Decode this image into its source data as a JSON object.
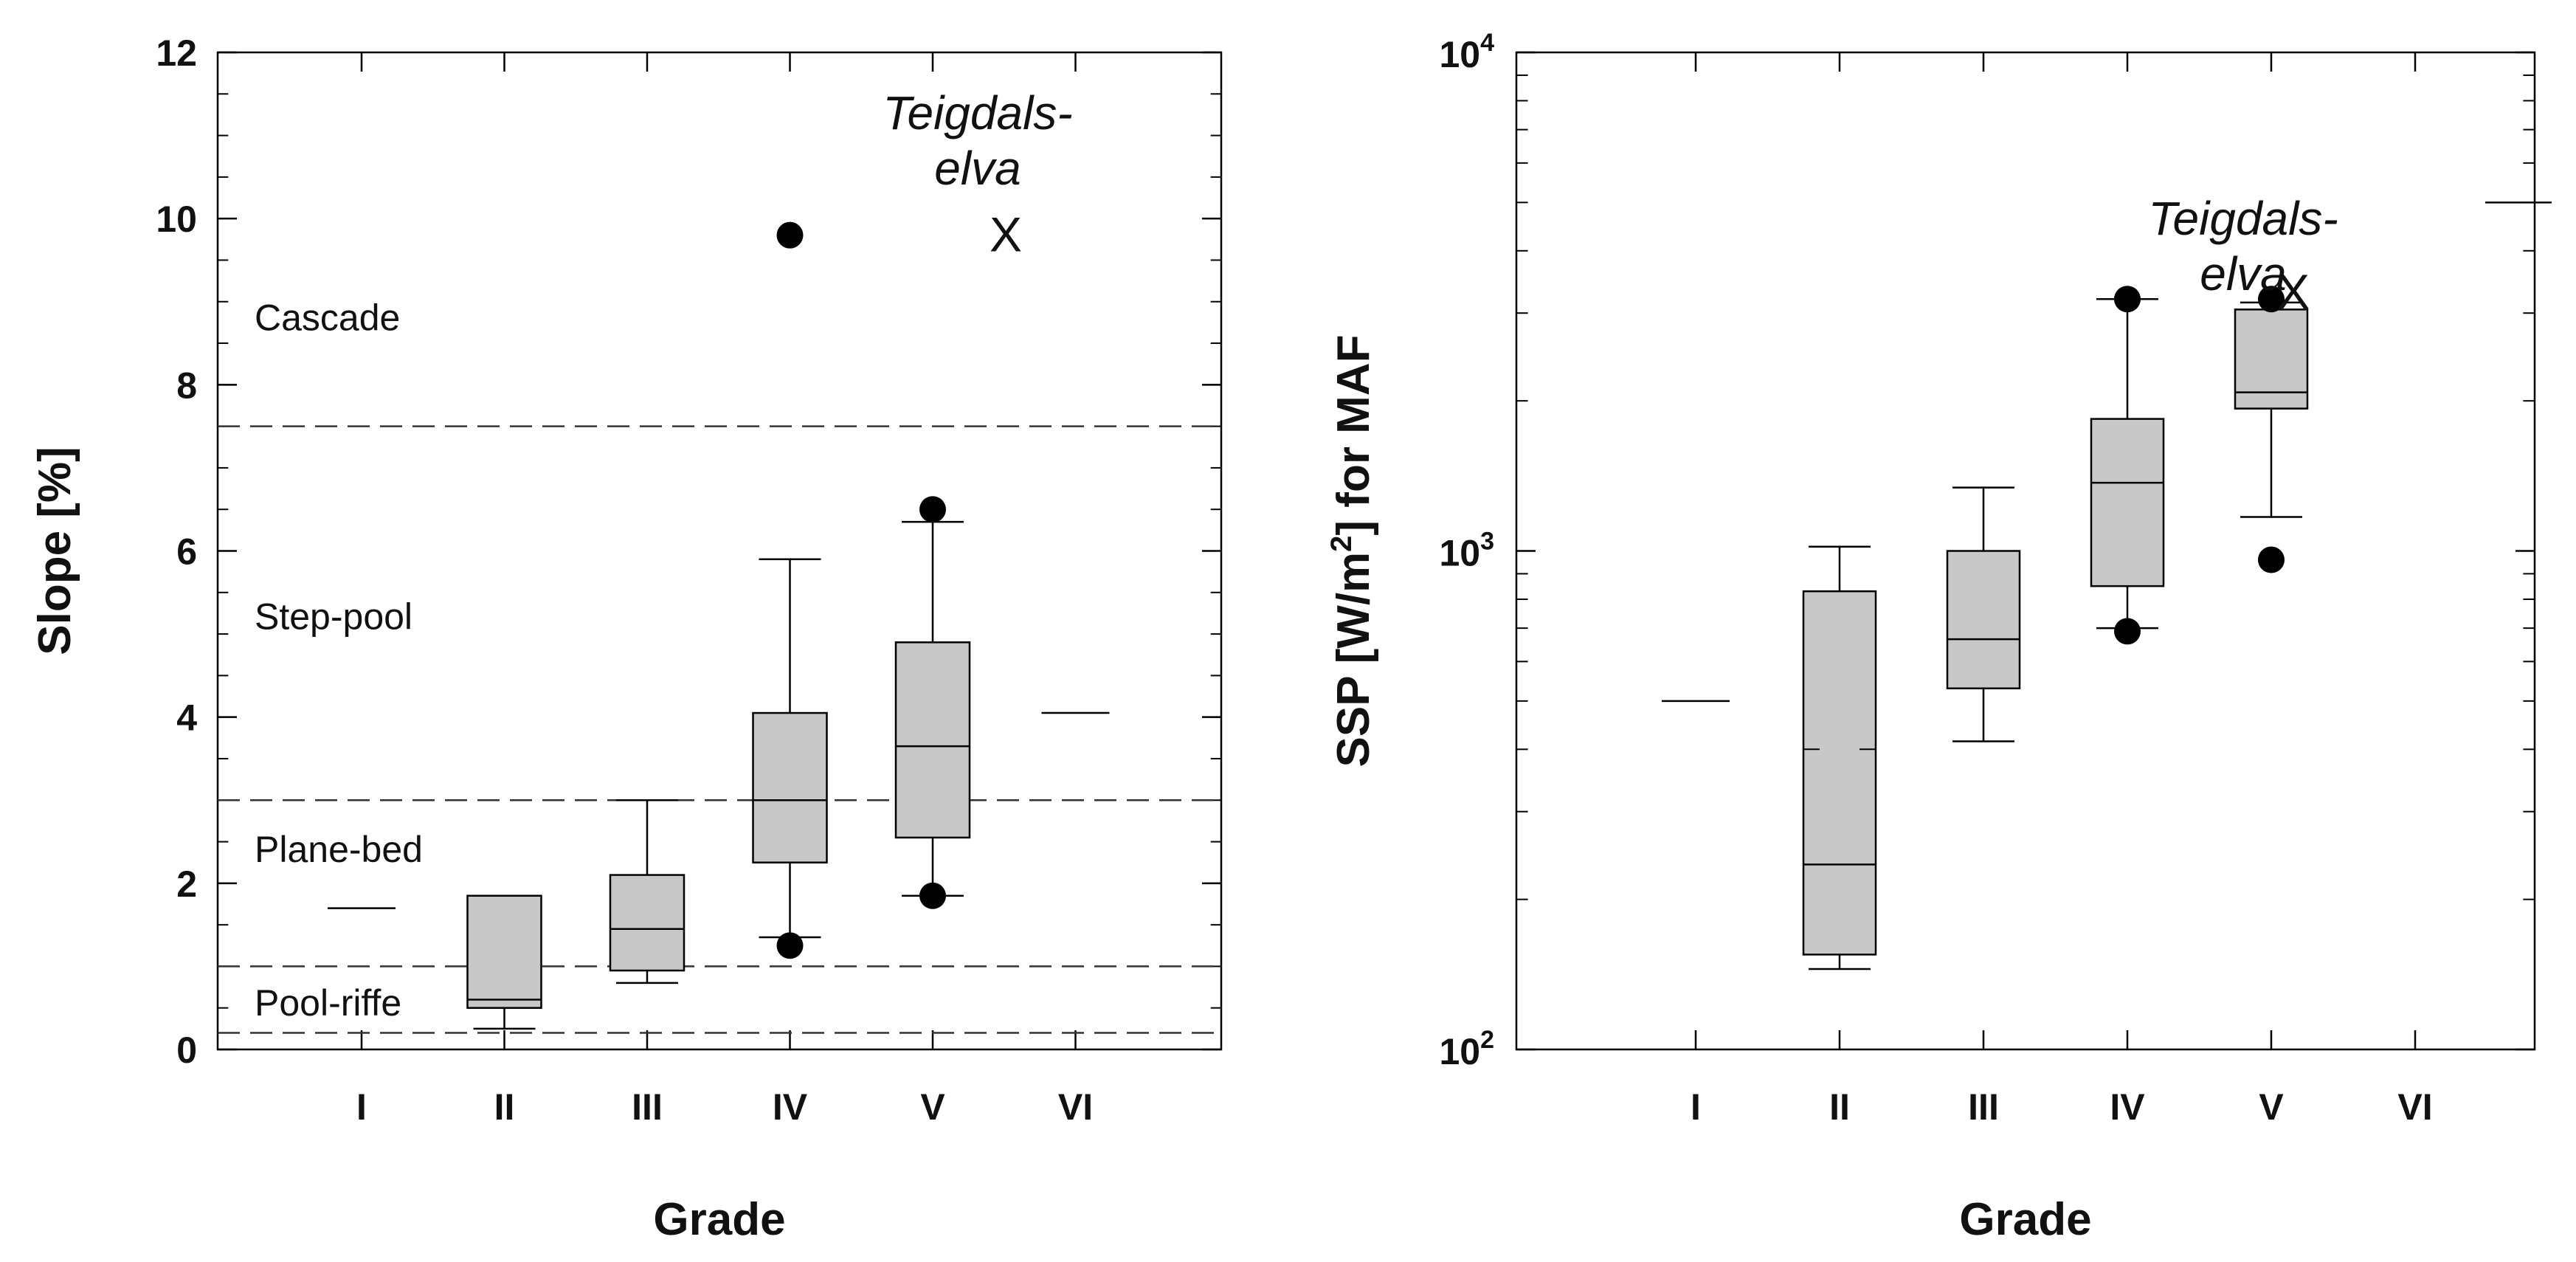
{
  "chart_data": [
    {
      "type": "box",
      "panel": "left",
      "xlabel": "Grade",
      "ylabel": "Slope [%]",
      "ylim": [
        0,
        12
      ],
      "yticks": [
        0,
        2,
        4,
        6,
        8,
        10,
        12
      ],
      "y_tick_labels": [
        "0",
        "2",
        "4",
        "6",
        "8",
        "10",
        "12"
      ],
      "categories": [
        "I",
        "II",
        "III",
        "IV",
        "V",
        "VI"
      ],
      "single_values": [
        {
          "category": "I",
          "value": 1.7
        },
        {
          "category": "VI",
          "value": 4.05
        }
      ],
      "boxes": [
        {
          "category": "II",
          "whisker_low": 0.25,
          "q1": 0.5,
          "median": 0.6,
          "q3": 1.85,
          "whisker_high": 1.85,
          "outliers": []
        },
        {
          "category": "III",
          "whisker_low": 0.8,
          "q1": 0.95,
          "median": 1.45,
          "q3": 2.1,
          "whisker_high": 3.0,
          "outliers": []
        },
        {
          "category": "IV",
          "whisker_low": 1.35,
          "q1": 2.25,
          "median": 3.0,
          "q3": 4.05,
          "whisker_high": 5.9,
          "outliers": [
            1.25,
            9.8
          ]
        },
        {
          "category": "V",
          "whisker_low": 1.85,
          "q1": 2.55,
          "median": 3.65,
          "q3": 4.9,
          "whisker_high": 6.35,
          "outliers": [
            1.85,
            6.5
          ]
        }
      ],
      "thresholds": [
        7.5,
        3.0,
        1.0,
        0.2
      ],
      "zones": [
        {
          "label": "Cascade",
          "y": 8.8
        },
        {
          "label": "Step-pool",
          "y": 5.2
        },
        {
          "label": "Plane-bed",
          "y": 2.4
        },
        {
          "label": "Pool-riffe",
          "y": 0.55
        }
      ],
      "annotation": {
        "line1": "Teigdals-",
        "line2": "elva",
        "marker": "X",
        "value": 9.8
      }
    },
    {
      "type": "box",
      "panel": "right",
      "scale": "log",
      "xlabel": "Grade",
      "ylabel_prefix": "SSP [W/m",
      "ylabel_sup": "2",
      "ylabel_suffix": "] for MAF",
      "ylim": [
        100,
        10000
      ],
      "yticks": [
        100,
        1000,
        10000
      ],
      "y_tick_base": "10",
      "y_tick_exponents": [
        "2",
        "3",
        "4"
      ],
      "categories": [
        "I",
        "II",
        "III",
        "IV",
        "V",
        "VI"
      ],
      "single_values": [
        {
          "category": "I",
          "value": 500
        }
      ],
      "boxes": [
        {
          "category": "II",
          "whisker_low": 145,
          "q1": 155,
          "median": 235,
          "q3": 830,
          "whisker_high": 1020,
          "outliers": [],
          "extra_tick": 400
        },
        {
          "category": "III",
          "whisker_low": 415,
          "q1": 530,
          "median": 665,
          "q3": 1000,
          "whisker_high": 1340,
          "outliers": []
        },
        {
          "category": "IV",
          "whisker_low": 700,
          "q1": 850,
          "median": 1370,
          "q3": 1840,
          "whisker_high": 3200,
          "outliers": [
            690,
            3200
          ]
        },
        {
          "category": "V",
          "whisker_low": 1170,
          "q1": 1930,
          "median": 2080,
          "q3": 3050,
          "whisker_high": 3150,
          "outliers": [
            960,
            3200
          ]
        }
      ],
      "extra_marks": [
        {
          "kind": "dash",
          "x_position": "right of VI",
          "value": 5000
        }
      ],
      "annotation": {
        "line1": "Teigdals-",
        "line2": "elva",
        "marker": "X",
        "value": 3300
      }
    }
  ]
}
